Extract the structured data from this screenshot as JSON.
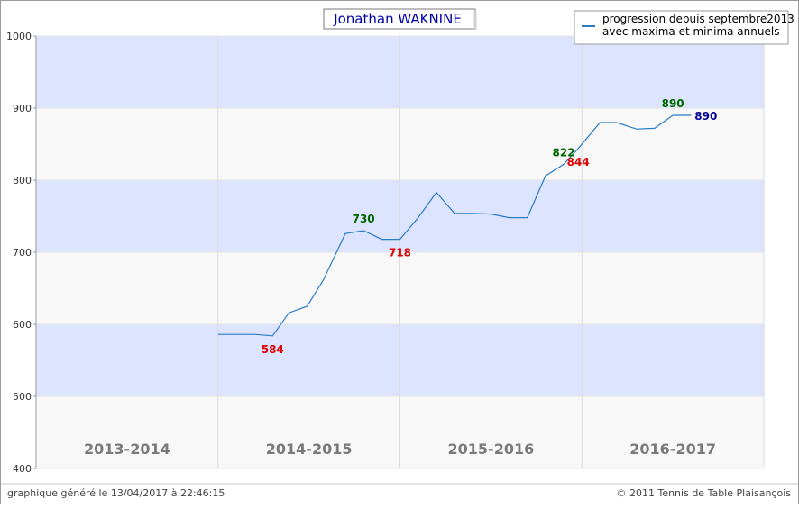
{
  "chart_data": {
    "type": "line",
    "title": "Jonathan WAKNINE",
    "legend": {
      "label_line1": "progression depuis septembre2013",
      "label_line2": "avec maxima et minima annuels",
      "position": "top-right"
    },
    "ylim": [
      400,
      1000
    ],
    "yticks": [
      400,
      500,
      600,
      700,
      800,
      900,
      1000
    ],
    "seasons": [
      "2013-2014",
      "2014-2015",
      "2015-2016",
      "2016-2017"
    ],
    "series": [
      {
        "color": "#2b7bc6",
        "points": [
          {
            "x": 1.0,
            "y": 586
          },
          {
            "x": 1.1,
            "y": 586
          },
          {
            "x": 1.2,
            "y": 586
          },
          {
            "x": 1.3,
            "y": 584
          },
          {
            "x": 1.39,
            "y": 616
          },
          {
            "x": 1.49,
            "y": 625
          },
          {
            "x": 1.58,
            "y": 662
          },
          {
            "x": 1.7,
            "y": 726
          },
          {
            "x": 1.8,
            "y": 730
          },
          {
            "x": 1.9,
            "y": 718
          },
          {
            "x": 2.0,
            "y": 718
          },
          {
            "x": 2.1,
            "y": 748
          },
          {
            "x": 2.2,
            "y": 783
          },
          {
            "x": 2.3,
            "y": 754
          },
          {
            "x": 2.4,
            "y": 754
          },
          {
            "x": 2.5,
            "y": 753
          },
          {
            "x": 2.6,
            "y": 748
          },
          {
            "x": 2.7,
            "y": 748
          },
          {
            "x": 2.8,
            "y": 806
          },
          {
            "x": 2.9,
            "y": 822
          },
          {
            "x": 2.98,
            "y": 844
          },
          {
            "x": 3.1,
            "y": 880
          },
          {
            "x": 3.19,
            "y": 880
          },
          {
            "x": 3.3,
            "y": 871
          },
          {
            "x": 3.4,
            "y": 872
          },
          {
            "x": 3.5,
            "y": 890
          },
          {
            "x": 3.6,
            "y": 890
          }
        ]
      }
    ],
    "annotations": [
      {
        "text": "584",
        "x": 1.3,
        "y": 584,
        "color": "#dd0000",
        "pos": "below"
      },
      {
        "text": "730",
        "x": 1.8,
        "y": 730,
        "color": "#006600",
        "pos": "above"
      },
      {
        "text": "718",
        "x": 2.0,
        "y": 718,
        "color": "#dd0000",
        "pos": "below"
      },
      {
        "text": "822",
        "x": 2.9,
        "y": 822,
        "color": "#006600",
        "pos": "above"
      },
      {
        "text": "844",
        "x": 2.98,
        "y": 844,
        "color": "#dd0000",
        "pos": "below"
      },
      {
        "text": "890",
        "x": 3.5,
        "y": 890,
        "color": "#006600",
        "pos": "above"
      },
      {
        "text": "890",
        "x": 3.6,
        "y": 890,
        "color": "#000099",
        "pos": "right"
      }
    ],
    "band_colors": [
      "#dde4ff",
      "#f8f8f8"
    ],
    "grid": true
  },
  "footer": {
    "left": "graphique généré le 13/04/2017 à 22:46:15",
    "right": "© 2011 Tennis de Table Plaisançois"
  }
}
